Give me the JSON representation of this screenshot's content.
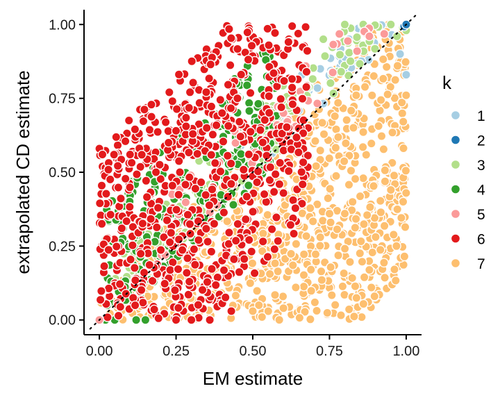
{
  "chart_data": {
    "type": "scatter",
    "xlabel": "EM estimate",
    "ylabel": "extrapolated CD estimate",
    "xlim": [
      -0.05,
      1.05
    ],
    "ylim": [
      -0.05,
      1.05
    ],
    "xticks": [
      "0.00",
      "0.25",
      "0.50",
      "0.75",
      "1.00"
    ],
    "yticks": [
      "0.00",
      "0.25",
      "0.50",
      "0.75",
      "1.00"
    ],
    "tick_values": [
      0,
      0.25,
      0.5,
      0.75,
      1.0
    ],
    "reference_line": {
      "style": "dotted",
      "slope": 1,
      "intercept": 0
    },
    "legend": {
      "title": "k",
      "position": "right"
    },
    "series": [
      {
        "name": "7",
        "color": "#FDBF6F",
        "region": {
          "x": [
            0.0,
            1.0
          ],
          "y_minus_x": [
            -0.85,
            0.1
          ]
        },
        "density": 900,
        "outliers": [
          [
            0.43,
            0.2
          ],
          [
            0.52,
            0.05
          ],
          [
            0.5,
            0.03
          ],
          [
            0.53,
            0.01
          ],
          [
            0.64,
            0.11
          ],
          [
            0.72,
            0.28
          ],
          [
            0.75,
            0.36
          ],
          [
            0.8,
            0.36
          ],
          [
            0.95,
            0.44
          ],
          [
            0.99,
            0.4
          ],
          [
            0.6,
            0.04
          ]
        ]
      },
      {
        "name": "1",
        "color": "#A6CEE3",
        "region": {
          "x": [
            0.45,
            1.0
          ],
          "y_minus_x": [
            0.0,
            0.15
          ]
        },
        "density": 40,
        "outliers": [
          [
            0.66,
            0.83
          ],
          [
            0.72,
            0.85
          ],
          [
            0.8,
            0.89
          ],
          [
            0.98,
            0.9
          ],
          [
            1.0,
            0.83
          ],
          [
            0.48,
            0.45
          ],
          [
            0.27,
            0.23
          ]
        ]
      },
      {
        "name": "3",
        "color": "#B2DF8A",
        "region": {
          "x": [
            0.05,
            1.0
          ],
          "y_minus_x": [
            0.0,
            0.22
          ]
        },
        "density": 150,
        "outliers": [
          [
            0.8,
            1.0
          ],
          [
            0.86,
            1.0
          ],
          [
            0.95,
            1.0
          ],
          [
            1.0,
            0.98
          ],
          [
            0.97,
            0.96
          ],
          [
            0.73,
            0.95
          ]
        ]
      },
      {
        "name": "4",
        "color": "#33A02C",
        "region": {
          "x": [
            0.02,
            0.58
          ],
          "y_minus_x": [
            -0.05,
            0.38
          ]
        },
        "density": 260,
        "outliers": [
          [
            0.02,
            0.0
          ],
          [
            0.05,
            0.0
          ],
          [
            0.12,
            0.0
          ],
          [
            0.15,
            0.0
          ]
        ]
      },
      {
        "name": "5",
        "color": "#FB9A99",
        "region": {
          "x": [
            0.2,
            1.0
          ],
          "y_minus_x": [
            0.0,
            0.2
          ]
        },
        "density": 40,
        "outliers": [
          [
            0.0,
            0.0
          ],
          [
            0.88,
            0.96
          ],
          [
            0.84,
            0.91
          ],
          [
            0.6,
            0.7
          ],
          [
            0.58,
            0.66
          ]
        ]
      },
      {
        "name": "6",
        "color": "#E31A1C",
        "region": {
          "x": [
            0.0,
            0.68
          ],
          "y_minus_x": [
            -0.35,
            0.58
          ]
        },
        "density": 700,
        "outliers": [
          [
            0.0,
            0.58
          ],
          [
            0.01,
            0.56
          ],
          [
            0.1,
            0.56
          ],
          [
            0.25,
            0.64
          ],
          [
            0.35,
            0.65
          ],
          [
            0.4,
            0.7
          ],
          [
            0.45,
            0.75
          ],
          [
            0.63,
            0.73
          ],
          [
            0.25,
            0.0
          ],
          [
            0.3,
            0.0
          ],
          [
            0.36,
            0.0
          ],
          [
            0.43,
            0.03
          ]
        ]
      },
      {
        "name": "2",
        "color": "#1F78B4",
        "region": {
          "x": [
            0.99,
            1.0
          ],
          "y_minus_x": [
            0.0,
            0.0
          ]
        },
        "density": 1,
        "outliers": [
          [
            1.0,
            1.0
          ]
        ]
      }
    ],
    "legend_order": [
      "1",
      "2",
      "3",
      "4",
      "5",
      "6",
      "7"
    ]
  }
}
